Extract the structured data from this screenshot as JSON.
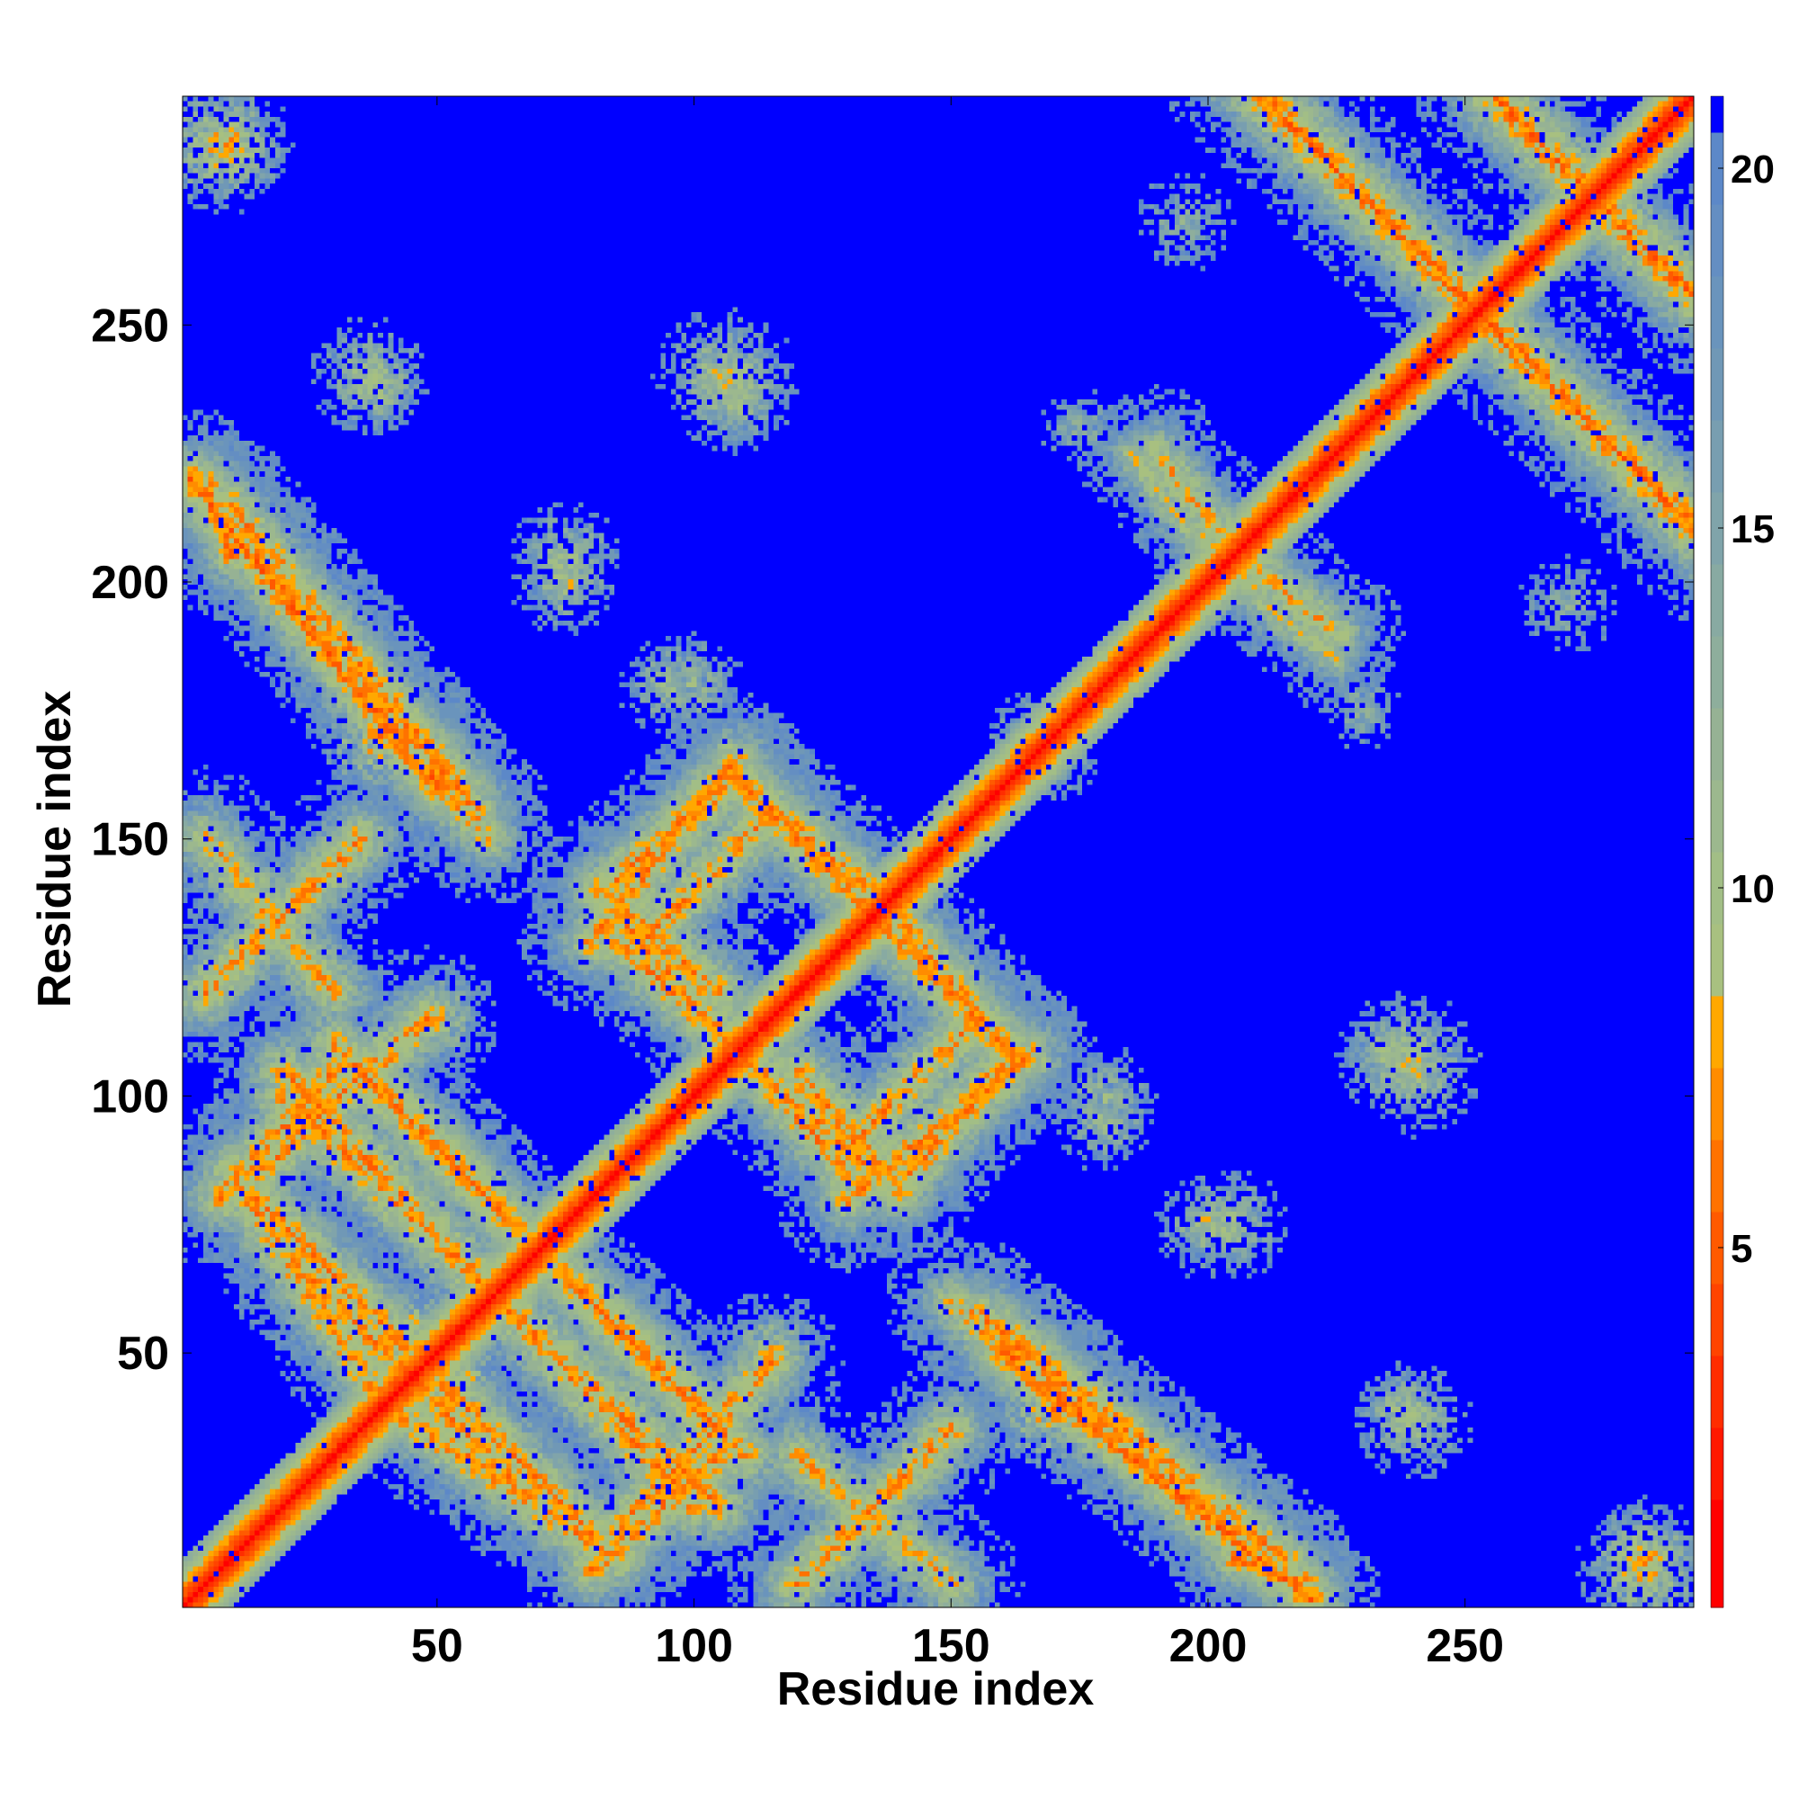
{
  "chart_data": {
    "type": "heatmap",
    "title": "",
    "xlabel": "Residue index",
    "ylabel": "Residue index",
    "n_residues": 294,
    "xlim": [
      1,
      294
    ],
    "ylim": [
      1,
      294
    ],
    "x_ticks": [
      50,
      100,
      150,
      200,
      250
    ],
    "y_ticks": [
      50,
      100,
      150,
      200,
      250
    ],
    "colorbar": {
      "range": [
        0,
        21
      ],
      "ticks": [
        5,
        10,
        15,
        20
      ],
      "levels": [
        {
          "max": 1.5,
          "color": "#ff0000"
        },
        {
          "max": 2.5,
          "color": "#ff1800"
        },
        {
          "max": 3.5,
          "color": "#ff2d00"
        },
        {
          "max": 4.5,
          "color": "#ff4400"
        },
        {
          "max": 5.5,
          "color": "#ff5a00"
        },
        {
          "max": 6.5,
          "color": "#ff7200"
        },
        {
          "max": 7.5,
          "color": "#ff8c00"
        },
        {
          "max": 8.5,
          "color": "#ffa800"
        },
        {
          "max": 9.5,
          "color": "#a8c080"
        },
        {
          "max": 10.5,
          "color": "#a2be86"
        },
        {
          "max": 11.5,
          "color": "#9cb88e"
        },
        {
          "max": 12.5,
          "color": "#96b294"
        },
        {
          "max": 13.5,
          "color": "#8eae9c"
        },
        {
          "max": 14.5,
          "color": "#88aaa2"
        },
        {
          "max": 15.5,
          "color": "#80a4aa"
        },
        {
          "max": 16.5,
          "color": "#789eb0"
        },
        {
          "max": 17.5,
          "color": "#7098b6"
        },
        {
          "max": 18.5,
          "color": "#6a94bc"
        },
        {
          "max": 19.5,
          "color": "#648ec2"
        },
        {
          "max": 20.5,
          "color": "#5c88c8"
        },
        {
          "max": 21.0,
          "color": "#0000ff"
        }
      ]
    },
    "background_value": 21,
    "features": [
      {
        "kind": "diagonal"
      },
      {
        "kind": "band",
        "from": [
          2,
          220
        ],
        "to": [
          50,
          160
        ],
        "width": 9,
        "peak": 6
      },
      {
        "kind": "band",
        "from": [
          5,
          150
        ],
        "to": [
          30,
          120
        ],
        "width": 9,
        "peak": 8
      },
      {
        "kind": "band",
        "from": [
          8,
          80
        ],
        "to": [
          30,
          105
        ],
        "width": 9,
        "peak": 7
      },
      {
        "kind": "band",
        "from": [
          15,
          80
        ],
        "to": [
          55,
          40
        ],
        "width": 9,
        "peak": 7
      },
      {
        "kind": "band",
        "from": [
          20,
          100
        ],
        "to": [
          105,
          20
        ],
        "width": 9,
        "peak": 7
      },
      {
        "kind": "band",
        "from": [
          40,
          40
        ],
        "to": [
          85,
          10
        ],
        "width": 9,
        "peak": 7
      },
      {
        "kind": "band",
        "from": [
          85,
          15
        ],
        "to": [
          115,
          48
        ],
        "width": 9,
        "peak": 7
      },
      {
        "kind": "band",
        "from": [
          30,
          60
        ],
        "to": [
          65,
          25
        ],
        "width": 9,
        "peak": 7
      },
      {
        "kind": "band",
        "from": [
          35,
          105
        ],
        "to": [
          75,
          65
        ],
        "width": 9,
        "peak": 7
      },
      {
        "kind": "band",
        "from": [
          75,
          65
        ],
        "to": [
          110,
          30
        ],
        "width": 9,
        "peak": 7
      },
      {
        "kind": "band",
        "from": [
          82,
          140
        ],
        "to": [
          108,
          162
        ],
        "width": 9,
        "peak": 7
      },
      {
        "kind": "band",
        "from": [
          108,
          162
        ],
        "to": [
          135,
          135
        ],
        "width": 9,
        "peak": 7
      },
      {
        "kind": "band",
        "from": [
          82,
          140
        ],
        "to": [
          105,
          120
        ],
        "width": 9,
        "peak": 7
      },
      {
        "kind": "band",
        "from": [
          85,
          130
        ],
        "to": [
          135,
          85
        ],
        "width": 9,
        "peak": 7
      },
      {
        "kind": "band",
        "from": [
          130,
          90
        ],
        "to": [
          155,
          115
        ],
        "width": 9,
        "peak": 7
      },
      {
        "kind": "band",
        "from": [
          135,
          140
        ],
        "to": [
          160,
          110
        ],
        "width": 9,
        "peak": 7
      },
      {
        "kind": "band",
        "from": [
          130,
          80
        ],
        "to": [
          165,
          108
        ],
        "width": 9,
        "peak": 7
      },
      {
        "kind": "band",
        "from": [
          155,
          58
        ],
        "to": [
          205,
          15
        ],
        "width": 9,
        "peak": 7
      },
      {
        "kind": "band",
        "from": [
          160,
          55
        ],
        "to": [
          215,
          10
        ],
        "width": 8,
        "peak": 7
      },
      {
        "kind": "band",
        "from": [
          205,
          10
        ],
        "to": [
          220,
          5
        ],
        "width": 8,
        "peak": 7
      },
      {
        "kind": "band",
        "from": [
          120,
          5
        ],
        "to": [
          150,
          35
        ],
        "width": 9,
        "peak": 7
      },
      {
        "kind": "band",
        "from": [
          150,
          60
        ],
        "to": [
          165,
          45
        ],
        "width": 8,
        "peak": 8
      },
      {
        "kind": "band",
        "from": [
          200,
          210
        ],
        "to": [
          225,
          190
        ],
        "width": 8,
        "peak": 8
      },
      {
        "kind": "band",
        "from": [
          185,
          225
        ],
        "to": [
          200,
          205
        ],
        "width": 6,
        "peak": 10
      },
      {
        "kind": "band",
        "from": [
          205,
          300
        ],
        "to": [
          295,
          210
        ],
        "width": 10,
        "peak": 6
      },
      {
        "kind": "band",
        "from": [
          255,
          295
        ],
        "to": [
          295,
          255
        ],
        "width": 10,
        "peak": 6
      },
      {
        "kind": "blob",
        "center": [
          106,
          240
        ],
        "radius": 14,
        "peak": 9
      },
      {
        "kind": "blob",
        "center": [
          37,
          240
        ],
        "radius": 12,
        "peak": 10
      },
      {
        "kind": "blob",
        "center": [
          75,
          200
        ],
        "radius": 11,
        "peak": 10
      },
      {
        "kind": "blob",
        "center": [
          95,
          180
        ],
        "radius": 10,
        "peak": 11
      },
      {
        "kind": "blob",
        "center": [
          8,
          285
        ],
        "radius": 14,
        "peak": 7
      },
      {
        "kind": "blob",
        "center": [
          237,
          108
        ],
        "radius": 12,
        "peak": 9
      },
      {
        "kind": "blob",
        "center": [
          238,
          38
        ],
        "radius": 10,
        "peak": 9
      },
      {
        "kind": "blob",
        "center": [
          285,
          10
        ],
        "radius": 11,
        "peak": 7
      },
      {
        "kind": "blob",
        "center": [
          205,
          75
        ],
        "radius": 11,
        "peak": 10
      },
      {
        "kind": "blob",
        "center": [
          180,
          100
        ],
        "radius": 10,
        "peak": 11
      },
      {
        "kind": "blob",
        "center": [
          170,
          165
        ],
        "radius": 9,
        "peak": 12
      },
      {
        "kind": "blob",
        "center": [
          175,
          230
        ],
        "radius": 8,
        "peak": 13
      },
      {
        "kind": "blob",
        "center": [
          270,
          195
        ],
        "radius": 10,
        "peak": 13
      },
      {
        "kind": "blob",
        "center": [
          40,
          170
        ],
        "radius": 14,
        "peak": 6
      },
      {
        "kind": "blob",
        "center": [
          45,
          55
        ],
        "radius": 9,
        "peak": 7
      },
      {
        "kind": "blob",
        "center": [
          115,
          50
        ],
        "radius": 10,
        "peak": 7
      }
    ]
  }
}
